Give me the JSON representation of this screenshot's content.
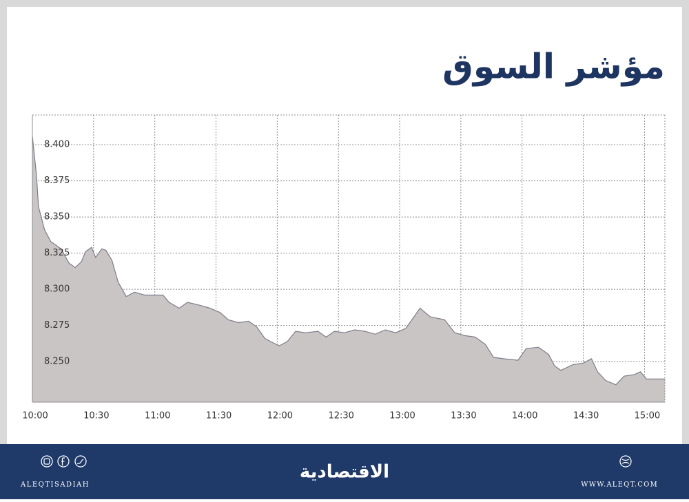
{
  "chart_data": {
    "type": "area",
    "title": "مؤشر السوق",
    "x": [
      "10:00",
      "10:02",
      "10:03",
      "10:06",
      "10:09",
      "10:14",
      "10:18",
      "10:21",
      "10:24",
      "10:26",
      "10:29",
      "10:31",
      "10:34",
      "10:36",
      "10:39",
      "10:42",
      "10:46",
      "10:50",
      "10:55",
      "11:00",
      "11:04",
      "11:07",
      "11:12",
      "11:16",
      "11:22",
      "11:27",
      "11:32",
      "11:36",
      "11:41",
      "11:46",
      "11:50",
      "11:54",
      "11:58",
      "12:01",
      "12:05",
      "12:09",
      "12:14",
      "12:20",
      "12:24",
      "12:28",
      "12:33",
      "12:38",
      "12:43",
      "12:48",
      "12:53",
      "12:58",
      "13:03",
      "13:07",
      "13:10",
      "13:15",
      "13:22",
      "13:27",
      "13:32",
      "13:37",
      "13:42",
      "13:46",
      "13:51",
      "13:58",
      "14:02",
      "14:08",
      "14:13",
      "14:16",
      "14:19",
      "14:25",
      "14:30",
      "14:34",
      "14:37",
      "14:41",
      "14:46",
      "14:50",
      "14:55",
      "14:58",
      "15:01",
      "15:10"
    ],
    "series": [
      {
        "name": "مؤشر السوق",
        "color": "#c9c5c4",
        "stroke": "#7d7d8c",
        "values": [
          8.406,
          8.379,
          8.357,
          8.341,
          8.333,
          8.328,
          8.318,
          8.315,
          8.319,
          8.326,
          8.329,
          8.322,
          8.328,
          8.327,
          8.32,
          8.305,
          8.295,
          8.298,
          8.296,
          8.296,
          8.296,
          8.291,
          8.287,
          8.291,
          8.289,
          8.287,
          8.284,
          8.279,
          8.277,
          8.278,
          8.274,
          8.266,
          8.263,
          8.261,
          8.264,
          8.271,
          8.27,
          8.271,
          8.267,
          8.271,
          8.27,
          8.272,
          8.271,
          8.269,
          8.272,
          8.27,
          8.273,
          8.281,
          8.287,
          8.281,
          8.279,
          8.27,
          8.268,
          8.267,
          8.262,
          8.253,
          8.252,
          8.251,
          8.259,
          8.26,
          8.255,
          8.247,
          8.244,
          8.248,
          8.249,
          8.252,
          8.243,
          8.237,
          8.234,
          8.24,
          8.241,
          8.243,
          8.238,
          8.238
        ]
      }
    ],
    "xlim": [
      "10:00",
      "15:10"
    ],
    "xticks": [
      "10:00",
      "10:30",
      "11:00",
      "11:30",
      "12:00",
      "12:30",
      "13:00",
      "13:30",
      "14:00",
      "14:30",
      "15:00"
    ],
    "ylim": [
      8.222,
      8.4205
    ],
    "yticks": [
      {
        "value": 8.25,
        "label": "8.250"
      },
      {
        "value": 8.275,
        "label": "8.275"
      },
      {
        "value": 8.3,
        "label": "8.300"
      },
      {
        "value": 8.325,
        "label": "8.325"
      },
      {
        "value": 8.35,
        "label": "8.350"
      },
      {
        "value": 8.375,
        "label": "8.375"
      },
      {
        "value": 8.4,
        "label": "8.400"
      }
    ],
    "grid": true
  },
  "footer": {
    "logo": "الاقتصادية",
    "left_text": "ALEQTISADIAH",
    "right_text": "WWW.ALEQT.COM"
  }
}
